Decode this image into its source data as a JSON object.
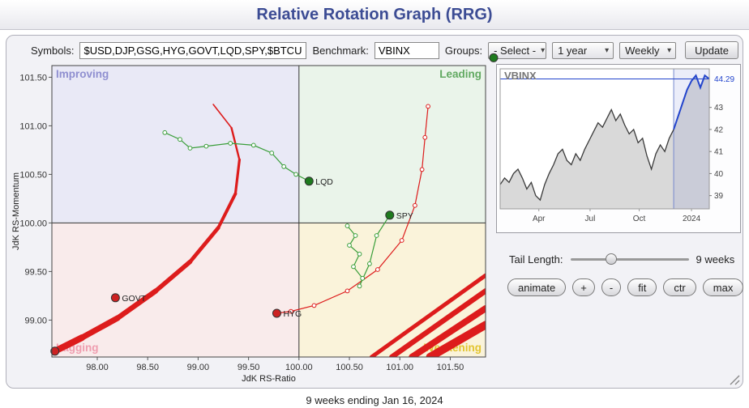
{
  "page": {
    "title": "Relative Rotation Graph (RRG)",
    "footer": "9 weeks ending Jan 16, 2024"
  },
  "toolbar": {
    "symbols_label": "Symbols:",
    "symbols_value": "$USD,DJP,GSG,HYG,GOVT,LQD,SPY,$BTCUSD",
    "benchmark_label": "Benchmark:",
    "benchmark_value": "VBINX",
    "groups_label": "Groups:",
    "groups_value": "- Select -",
    "period_value": "1 year",
    "frequency_value": "Weekly",
    "update_label": "Update"
  },
  "controls": {
    "tail_label": "Tail Length:",
    "tail_value": "9 weeks",
    "buttons": [
      "animate",
      "+",
      "-",
      "fit",
      "ctr",
      "max"
    ]
  },
  "chart_data": {
    "rrg": {
      "type": "scatter",
      "xlabel": "JdK RS-Ratio",
      "ylabel": "JdK RS-Momentum",
      "xlim": [
        97.55,
        101.85
      ],
      "ylim": [
        98.62,
        101.62
      ],
      "xticks": [
        98.0,
        98.5,
        99.0,
        99.5,
        100.0,
        100.5,
        101.0,
        101.5
      ],
      "yticks": [
        99.0,
        99.5,
        100.0,
        100.5,
        101.0,
        101.5
      ],
      "center": [
        100,
        100
      ],
      "quadrants": {
        "improving": {
          "label": "Improving",
          "color": "#e9e9f6",
          "label_color": "#8f8fd0"
        },
        "leading": {
          "label": "Leading",
          "color": "#eaf4ea",
          "label_color": "#61a961"
        },
        "lagging": {
          "label": "Lagging",
          "color": "#f9ebeb",
          "label_color": "#ef9daf"
        },
        "weakening": {
          "label": "Weakening",
          "color": "#faf3da",
          "label_color": "#e3c42f"
        }
      },
      "series": [
        {
          "name": "$USD",
          "style": "tapered",
          "color": "#dd1c1c",
          "width_start": 1.6,
          "width_end": 8,
          "dot": true,
          "dot_color": "#cc2222",
          "label": "",
          "points": [
            [
              99.15,
              101.22
            ],
            [
              99.33,
              100.98
            ],
            [
              99.41,
              100.65
            ],
            [
              99.37,
              100.3
            ],
            [
              99.2,
              99.95
            ],
            [
              98.92,
              99.6
            ],
            [
              98.58,
              99.3
            ],
            [
              98.2,
              99.02
            ],
            [
              97.85,
              98.82
            ],
            [
              97.58,
              98.68
            ]
          ]
        },
        {
          "name": "GOVT",
          "style": "markers",
          "color": "#dd1c1c",
          "dot": true,
          "dot_color": "#cc2222",
          "label": "GOVT",
          "points": [
            [
              98.18,
              99.23
            ]
          ]
        },
        {
          "name": "HYG",
          "style": "markers",
          "color": "#dd1c1c",
          "dot": true,
          "dot_color": "#cc2222",
          "label": "HYG",
          "points": [
            [
              101.28,
              101.2
            ],
            [
              101.25,
              100.88
            ],
            [
              101.22,
              100.55
            ],
            [
              101.15,
              100.18
            ],
            [
              101.02,
              99.82
            ],
            [
              100.78,
              99.52
            ],
            [
              100.48,
              99.3
            ],
            [
              100.15,
              99.15
            ],
            [
              99.92,
              99.09
            ],
            [
              99.78,
              99.07
            ]
          ]
        },
        {
          "name": "LQD",
          "style": "markers",
          "color": "#3a9e3a",
          "dot": true,
          "dot_color": "#1e7a1e",
          "label": "LQD",
          "points": [
            [
              98.67,
              100.93
            ],
            [
              98.82,
              100.86
            ],
            [
              98.92,
              100.77
            ],
            [
              99.08,
              100.79
            ],
            [
              99.32,
              100.82
            ],
            [
              99.55,
              100.8
            ],
            [
              99.73,
              100.72
            ],
            [
              99.85,
              100.58
            ],
            [
              99.97,
              100.5
            ],
            [
              100.1,
              100.43
            ]
          ]
        },
        {
          "name": "SPY",
          "style": "markers",
          "color": "#3a9e3a",
          "dot": true,
          "dot_color": "#1e7a1e",
          "label": "SPY",
          "points": [
            [
              100.48,
              99.97
            ],
            [
              100.56,
              99.87
            ],
            [
              100.5,
              99.77
            ],
            [
              100.6,
              99.68
            ],
            [
              100.54,
              99.55
            ],
            [
              100.63,
              99.43
            ],
            [
              100.6,
              99.35
            ],
            [
              100.7,
              99.58
            ],
            [
              100.77,
              99.87
            ],
            [
              100.9,
              100.08
            ]
          ]
        },
        {
          "name": "$BTCUSD",
          "style": "fan",
          "color": "#dd1c1c",
          "dot": false,
          "lines": [
            [
              [
                101.85,
                99.46
              ],
              [
                100.72,
                98.62
              ]
            ],
            [
              [
                101.85,
                99.3
              ],
              [
                100.92,
                98.62
              ]
            ],
            [
              [
                101.85,
                99.12
              ],
              [
                101.12,
                98.62
              ]
            ],
            [
              [
                101.85,
                98.95
              ],
              [
                101.3,
                98.62
              ]
            ]
          ],
          "widths": [
            5,
            6.5,
            8,
            10
          ]
        }
      ],
      "offscale_dots": [
        {
          "x": 101.93,
          "y": 101.7,
          "color": "#1e7a1e"
        }
      ]
    },
    "benchmark": {
      "type": "area",
      "title": "VBINX",
      "ylim": [
        38.4,
        44.75
      ],
      "yticks": [
        39,
        40,
        41,
        42,
        43
      ],
      "last_value": 44.29,
      "tail_points": 9,
      "xlabels": [
        {
          "label": "Apr",
          "f": 0.185
        },
        {
          "label": "Jul",
          "f": 0.43
        },
        {
          "label": "Oct",
          "f": 0.665
        },
        {
          "label": "2024",
          "f": 0.915
        }
      ],
      "area_color": "#d9d9d9",
      "line_color": "#3a3a3a",
      "tail_color": "#2244cc",
      "band_fill": "rgba(110,125,215,0.14)",
      "band_border": "#7788cc",
      "values": [
        39.5,
        39.8,
        39.6,
        40.0,
        40.2,
        39.8,
        39.3,
        39.6,
        39.0,
        38.8,
        39.5,
        40.0,
        40.4,
        40.9,
        41.1,
        40.6,
        40.4,
        40.9,
        40.6,
        41.1,
        41.5,
        41.9,
        42.3,
        42.1,
        42.5,
        42.9,
        42.4,
        42.7,
        42.2,
        41.8,
        42.0,
        41.4,
        41.6,
        40.8,
        40.2,
        40.9,
        41.3,
        41.0,
        41.6,
        42.0,
        42.6,
        43.2,
        43.8,
        44.2,
        44.45,
        43.9,
        44.45,
        44.29
      ]
    }
  }
}
